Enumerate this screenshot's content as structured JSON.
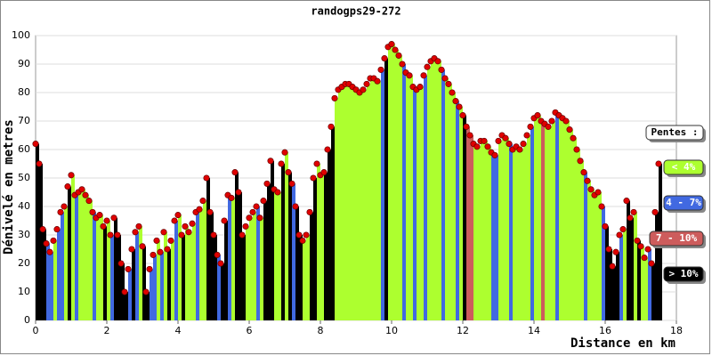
{
  "chart_data": {
    "type": "profile",
    "title": "randogps29-272",
    "x_label": "Distance en km",
    "y_label": "Dénivelé en metres",
    "x": [
      0,
      0.1,
      0.2,
      0.3,
      0.4,
      0.5,
      0.6,
      0.7,
      0.8,
      0.9,
      1,
      1.1,
      1.2,
      1.3,
      1.4,
      1.5,
      1.6,
      1.7,
      1.8,
      1.9,
      2,
      2.1,
      2.2,
      2.3,
      2.4,
      2.5,
      2.6,
      2.7,
      2.8,
      2.9,
      3,
      3.1,
      3.2,
      3.3,
      3.4,
      3.5,
      3.6,
      3.7,
      3.8,
      3.9,
      4,
      4.1,
      4.2,
      4.3,
      4.4,
      4.5,
      4.6,
      4.7,
      4.8,
      4.9,
      5,
      5.1,
      5.2,
      5.3,
      5.4,
      5.5,
      5.6,
      5.7,
      5.8,
      5.9,
      6,
      6.1,
      6.2,
      6.3,
      6.4,
      6.5,
      6.6,
      6.7,
      6.8,
      6.9,
      7,
      7.1,
      7.2,
      7.3,
      7.4,
      7.5,
      7.6,
      7.7,
      7.8,
      7.9,
      8,
      8.1,
      8.2,
      8.3,
      8.4,
      8.5,
      8.6,
      8.7,
      8.8,
      8.9,
      9,
      9.1,
      9.2,
      9.3,
      9.4,
      9.5,
      9.6,
      9.7,
      9.8,
      9.9,
      10,
      10.1,
      10.2,
      10.3,
      10.4,
      10.5,
      10.6,
      10.7,
      10.8,
      10.9,
      11,
      11.1,
      11.2,
      11.3,
      11.4,
      11.5,
      11.6,
      11.7,
      11.8,
      11.9,
      12,
      12.1,
      12.2,
      12.3,
      12.4,
      12.5,
      12.6,
      12.7,
      12.8,
      12.9,
      13,
      13.1,
      13.2,
      13.3,
      13.4,
      13.5,
      13.6,
      13.7,
      13.8,
      13.9,
      14,
      14.1,
      14.2,
      14.3,
      14.4,
      14.5,
      14.6,
      14.7,
      14.8,
      14.9,
      15,
      15.1,
      15.2,
      15.3,
      15.4,
      15.5,
      15.6,
      15.7,
      15.8,
      15.9,
      16,
      16.1,
      16.2,
      16.3,
      16.4,
      16.5,
      16.6,
      16.7,
      16.8,
      16.9,
      17,
      17.1,
      17.2,
      17.3,
      17.4,
      17.5
    ],
    "values": [
      62,
      55,
      32,
      27,
      24,
      28,
      32,
      38,
      40,
      47,
      51,
      44,
      45,
      46,
      44,
      42,
      38,
      36,
      37,
      33,
      35,
      30,
      36,
      30,
      20,
      10,
      18,
      25,
      31,
      33,
      26,
      10,
      18,
      23,
      28,
      24,
      31,
      25,
      28,
      35,
      37,
      30,
      33,
      31,
      34,
      38,
      39,
      42,
      50,
      38,
      30,
      23,
      20,
      35,
      44,
      43,
      52,
      45,
      30,
      33,
      36,
      38,
      40,
      36,
      42,
      48,
      56,
      46,
      45,
      55,
      59,
      52,
      48,
      40,
      30,
      28,
      30,
      38,
      50,
      55,
      51,
      52,
      60,
      68,
      78,
      81,
      82,
      83,
      83,
      82,
      81,
      80,
      81,
      83,
      85,
      85,
      84,
      88,
      92,
      96,
      97,
      95,
      93,
      90,
      87,
      86,
      82,
      81,
      82,
      86,
      89,
      91,
      92,
      91,
      88,
      85,
      83,
      80,
      77,
      75,
      72,
      68,
      65,
      62,
      61,
      63,
      63,
      61,
      59,
      58,
      63,
      65,
      64,
      62,
      60,
      61,
      60,
      62,
      65,
      68,
      71,
      72,
      70,
      69,
      68,
      70,
      73,
      72,
      71,
      70,
      67,
      64,
      60,
      56,
      52,
      49,
      46,
      44,
      45,
      40,
      33,
      25,
      19,
      24,
      30,
      32,
      42,
      36,
      38,
      28,
      26,
      22,
      25,
      20,
      38,
      55
    ],
    "slope_classes": [
      3,
      3,
      3,
      1,
      1,
      0,
      1,
      1,
      0,
      3,
      0,
      1,
      0,
      0,
      0,
      0,
      1,
      0,
      0,
      3,
      0,
      1,
      3,
      3,
      3,
      3,
      1,
      3,
      1,
      0,
      3,
      3,
      1,
      1,
      0,
      1,
      0,
      3,
      0,
      1,
      0,
      3,
      0,
      0,
      0,
      1,
      0,
      0,
      3,
      3,
      3,
      1,
      3,
      3,
      1,
      0,
      3,
      3,
      3,
      0,
      0,
      0,
      1,
      0,
      3,
      3,
      3,
      0,
      0,
      3,
      0,
      3,
      1,
      3,
      3,
      0,
      0,
      3,
      3,
      0,
      0,
      3,
      3,
      3,
      0,
      0,
      0,
      0,
      0,
      0,
      0,
      0,
      0,
      0,
      0,
      0,
      0,
      1,
      3,
      0,
      0,
      0,
      0,
      1,
      0,
      0,
      1,
      0,
      0,
      1,
      0,
      0,
      0,
      0,
      1,
      0,
      0,
      0,
      1,
      0,
      3,
      2,
      2,
      0,
      0,
      0,
      0,
      0,
      1,
      1,
      0,
      0,
      0,
      1,
      0,
      0,
      0,
      0,
      0,
      1,
      0,
      0,
      2,
      0,
      0,
      0,
      1,
      0,
      0,
      0,
      0,
      0,
      0,
      0,
      1,
      0,
      0,
      0,
      0,
      1,
      3,
      3,
      3,
      3,
      1,
      0,
      3,
      3,
      0,
      3,
      0,
      0,
      1,
      3,
      3,
      3
    ],
    "legend_title": "Pentes :",
    "legend": [
      {
        "label": "< 4%",
        "color": "#adff2f"
      },
      {
        "label": "4 - 7%",
        "color": "#4169e1"
      },
      {
        "label": "7 - 10%",
        "color": "#cd5c5c"
      },
      {
        "label": "> 10%",
        "color": "#000000"
      }
    ],
    "marker_color": "#e00000",
    "xlim": [
      0,
      18
    ],
    "xticks": [
      0,
      2,
      4,
      6,
      8,
      10,
      12,
      14,
      16,
      18
    ],
    "ylim": [
      0,
      100
    ],
    "yticks": [
      0,
      10,
      20,
      30,
      40,
      50,
      60,
      70,
      80,
      90,
      100
    ],
    "grid": true
  }
}
